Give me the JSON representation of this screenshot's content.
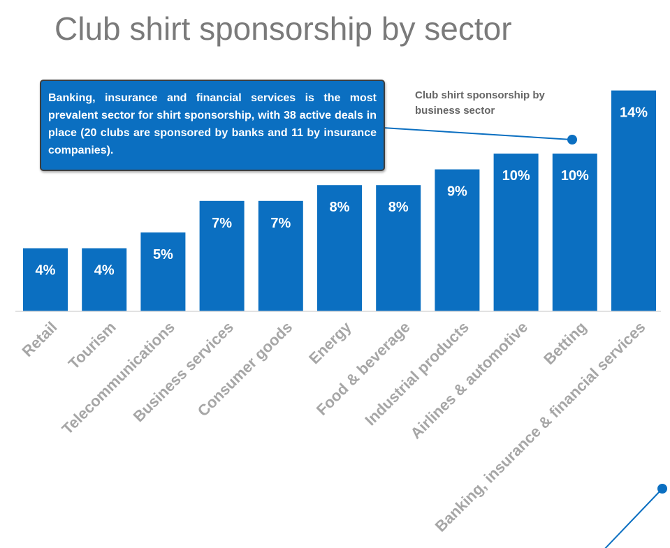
{
  "page": {
    "title": "Club shirt sponsorship by sector"
  },
  "callout": {
    "text": "Banking, insurance and financial services is the most prevalent sector for shirt sponsorship, with 38 active deals in place (20 clubs are sponsored by banks and 11 by insurance companies)."
  },
  "legend_note": {
    "text": "Club shirt sponsorship by business sector"
  },
  "colors": {
    "bar": "#0b6fc1",
    "connector": "#0b6fc1",
    "title": "#7a7a7a",
    "category_label": "#a6a6a6"
  },
  "chart_data": {
    "type": "bar",
    "title": "Club shirt sponsorship by business sector",
    "categories": [
      "Retail",
      "Tourism",
      "Telecommunications",
      "Business services",
      "Consumer goods",
      "Energy",
      "Food & beverage",
      "Industrial products",
      "Airlines & automotive",
      "Betting",
      "Banking, insurance & financial services"
    ],
    "values": [
      4,
      4,
      5,
      7,
      7,
      8,
      8,
      9,
      10,
      10,
      14
    ],
    "value_labels": [
      "4%",
      "4%",
      "5%",
      "7%",
      "7%",
      "8%",
      "8%",
      "9%",
      "10%",
      "10%",
      "14%"
    ],
    "unit": "%",
    "ylim": [
      0,
      14
    ],
    "grid": false,
    "xlabel": "",
    "ylabel": ""
  }
}
